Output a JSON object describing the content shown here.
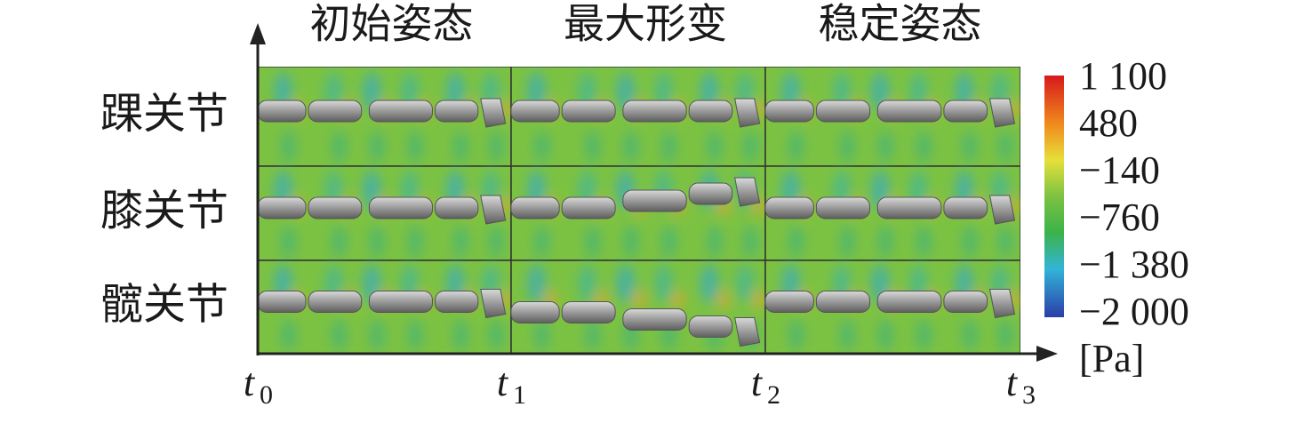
{
  "column_headers": [
    "初始姿态",
    "最大形变",
    "稳定姿态"
  ],
  "row_labels": [
    "踝关节",
    "膝关节",
    "髋关节"
  ],
  "colorbar": {
    "labels": [
      "1 100",
      "480",
      "−140",
      "−760",
      "−1 380",
      "−2 000"
    ],
    "unit": "[Pa]"
  },
  "time_labels": [
    {
      "var": "t",
      "sub": "0"
    },
    {
      "var": "t",
      "sub": "1"
    },
    {
      "var": "t",
      "sub": "2"
    },
    {
      "var": "t",
      "sub": "3"
    }
  ]
}
